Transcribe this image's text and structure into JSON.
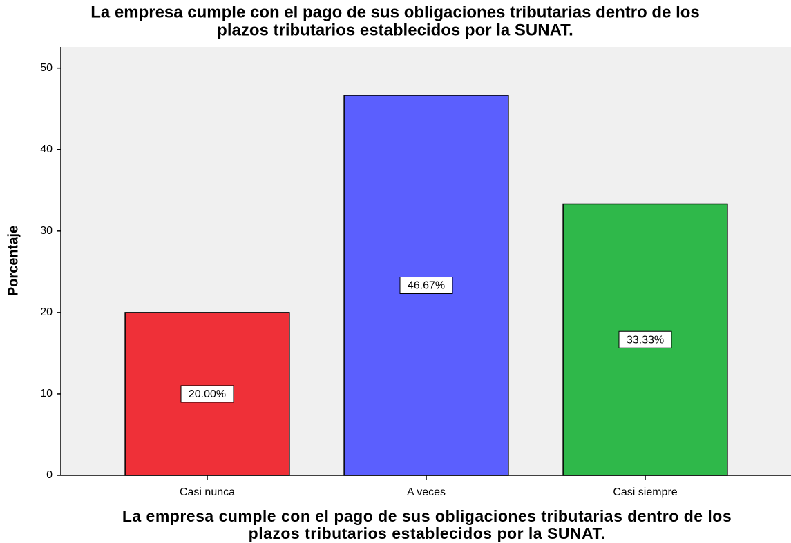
{
  "chart_data": {
    "type": "bar",
    "title": [
      "La empresa cumple con el pago de sus obligaciones tributarias dentro de los",
      "plazos tributarios establecidos por la SUNAT."
    ],
    "x_label": [
      "La empresa cumple con el pago de sus obligaciones tributarias dentro de los",
      "plazos tributarios establecidos por la SUNAT."
    ],
    "y_label": "Porcentaje",
    "categories": [
      "Casi nunca",
      "A veces",
      "Casi siempre"
    ],
    "values": [
      20.0,
      46.67,
      33.33
    ],
    "value_labels": [
      "20.00%",
      "46.67%",
      "33.33%"
    ],
    "colors": [
      "#ef3038",
      "#5b5ffe",
      "#2fb84a"
    ],
    "ylim": [
      0,
      52.6
    ],
    "yticks": [
      0,
      10,
      20,
      30,
      40,
      50
    ]
  }
}
